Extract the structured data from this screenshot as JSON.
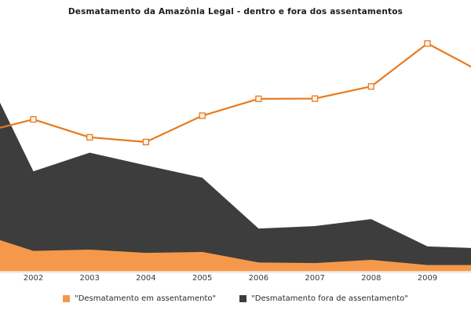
{
  "title": "Desmatamento da Amazônia Legal - dentro e fora dos assentamentos",
  "colors": {
    "background": "#FFFFFF",
    "title_text": "#1C1C1C",
    "axis_text": "#3A3A3A",
    "legend_text": "#2A2A2A",
    "line": "#E87A1E",
    "marker_fill": "#FCF2E8",
    "area_in_settlement": "#F4994B",
    "area_out_settlement": "#3D3D3D",
    "baseline": "#F3E1D2"
  },
  "x_axis": {
    "tick_labels": [
      "2002",
      "2003",
      "2004",
      "2005",
      "2006",
      "2007",
      "2008",
      "2009"
    ]
  },
  "legend": {
    "items": [
      {
        "label": "\"Desmatamento em assentamento\"",
        "color": "#F4994B"
      },
      {
        "label": "\"Desmatamento fora de assentamento\"",
        "color": "#3D3D3D"
      }
    ]
  },
  "chart_data": {
    "type": "area",
    "title": "Desmatamento da Amazônia Legal - dentro e fora dos assentamentos",
    "xlabel": "",
    "ylabel": "",
    "x": [
      2001,
      2002,
      2003,
      2004,
      2005,
      2006,
      2007,
      2008,
      2009,
      2010
    ],
    "x_visible_ticks": [
      "2002",
      "2003",
      "2004",
      "2005",
      "2006",
      "2007",
      "2008",
      "2009"
    ],
    "units": "percent of plot height (no y-axis shown; values estimated from pixels)",
    "ylim": [
      0,
      100
    ],
    "grid": false,
    "legend_position": "bottom",
    "note": "First (2001) and last (2010) points are clipped at the chart edges; the orange line with square markers has no legend entry",
    "series": [
      {
        "name": "\"Desmatamento em assentamento\"",
        "kind": "area",
        "color": "#F4994B",
        "values": [
          15.5,
          8.2,
          8.7,
          7.4,
          7.8,
          3.5,
          3.3,
          4.6,
          2.5,
          2.5
        ]
      },
      {
        "name": "\"Desmatamento fora de assentamento\"",
        "kind": "area",
        "color": "#3D3D3D",
        "values": [
          87.0,
          40.3,
          47.8,
          42.7,
          37.7,
          17.2,
          18.2,
          21.0,
          10.0,
          9.2
        ]
      },
      {
        "name": "",
        "kind": "line-with-square-markers",
        "color": "#E87A1E",
        "values": [
          55.5,
          61.2,
          54.0,
          52.1,
          62.7,
          69.5,
          69.6,
          74.5,
          91.8,
          79.7
        ]
      }
    ]
  }
}
